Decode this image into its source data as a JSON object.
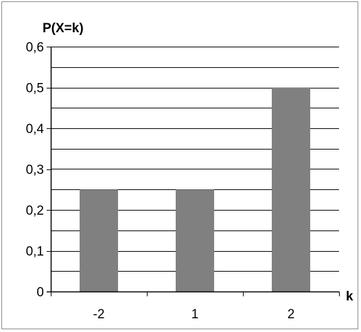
{
  "chart_data": {
    "type": "bar",
    "categories": [
      "-2",
      "1",
      "2"
    ],
    "values": [
      0.25,
      0.25,
      0.5
    ],
    "ylabel": "P(X=k)",
    "xlabel": "k",
    "ylim": [
      0,
      0.6
    ],
    "y_ticks": [
      {
        "value": 0,
        "label": "0"
      },
      {
        "value": 0.1,
        "label": "0,1"
      },
      {
        "value": 0.2,
        "label": "0,2"
      },
      {
        "value": 0.3,
        "label": "0,3"
      },
      {
        "value": 0.4,
        "label": "0,4"
      },
      {
        "value": 0.5,
        "label": "0,5"
      },
      {
        "value": 0.6,
        "label": "0,6"
      }
    ],
    "gridline_step": 0.05,
    "grid": true,
    "bar_color": "#808080"
  }
}
